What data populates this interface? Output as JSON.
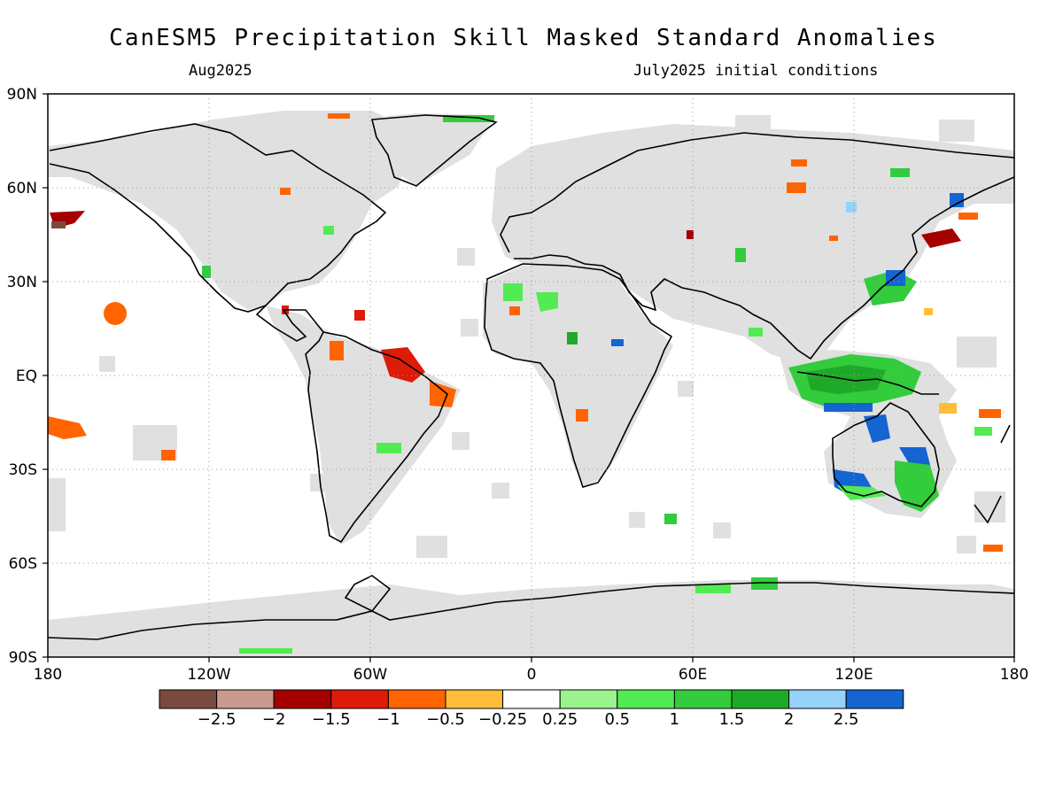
{
  "title": "CanESM5 Precipitation Skill Masked Standard Anomalies",
  "valid_month": "Aug2025",
  "init_text": "July2025 initial conditions",
  "lat_labels": [
    "90N",
    "60N",
    "30N",
    "EQ",
    "30S",
    "60S",
    "90S"
  ],
  "lon_labels": [
    "180",
    "120W",
    "60W",
    "0",
    "60E",
    "120E",
    "180"
  ],
  "colorbar": {
    "labels": [
      "-2.5",
      "-2",
      "-1.5",
      "-1",
      "-0.5",
      "-0.25",
      "0.25",
      "0.5",
      "1",
      "1.5",
      "2",
      "2.5"
    ],
    "colors": [
      "#7b4a3f",
      "#c89a8e",
      "#a50000",
      "#dc1c08",
      "#ff6400",
      "#ffbd38",
      "#ffffff",
      "#9cf28c",
      "#52eb52",
      "#32cc3c",
      "#1eaa28",
      "#96d2fa",
      "#1464d2"
    ]
  },
  "mask_color": "#e0e0e0"
}
